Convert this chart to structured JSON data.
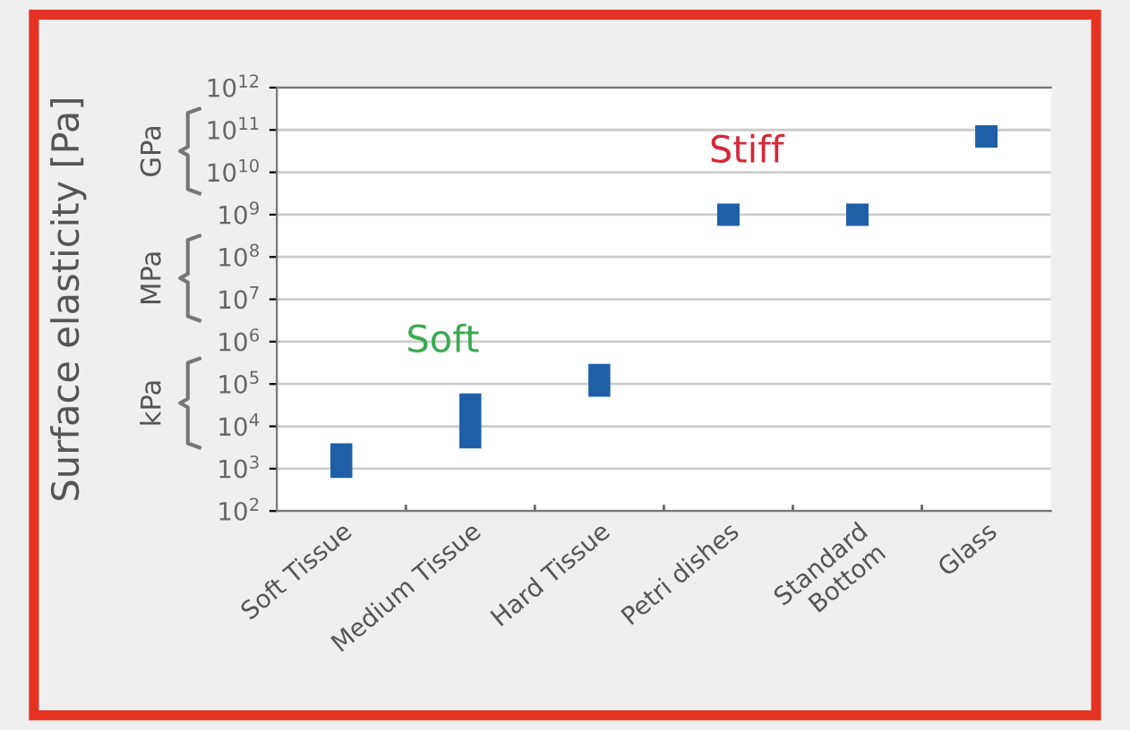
{
  "chart_data": {
    "type": "bar",
    "ylabel": "Surface elasticity [Pa]",
    "categories": [
      "Soft Tissue",
      "Medium Tissue",
      "Hard Tissue",
      "Petri dishes",
      "Standard\nBottom",
      "Glass"
    ],
    "series": [
      {
        "color": "#1f5fa8",
        "values": [
          3400,
          57000,
          250000,
          null,
          null,
          null
        ],
        "base": [
          600,
          3000,
          50000,
          null,
          null,
          null
        ]
      },
      {
        "type": "scatter",
        "color": "#1f5fa8",
        "marker": "square",
        "values": [
          null,
          null,
          null,
          1000000000,
          1000000000,
          70000000000
        ]
      }
    ],
    "log": true,
    "ylim": [
      100,
      1000000000000
    ],
    "yticks": [
      {
        "value": 100,
        "label": "10$^{2}$"
      },
      {
        "value": 1000,
        "label": "10$^{3}$"
      },
      {
        "value": 10000,
        "label": "10$^{4}$"
      },
      {
        "value": 100000,
        "label": "10$^{5}$"
      },
      {
        "value": 1000000,
        "label": "10$^{6}$"
      },
      {
        "value": 10000000,
        "label": "10$^{7}$"
      },
      {
        "value": 100000000,
        "label": "10$^{8}$"
      },
      {
        "value": 1000000000,
        "label": "10$^{9}$"
      },
      {
        "value": 10000000000,
        "label": "10$^{10}$"
      },
      {
        "value": 100000000000,
        "label": "10$^{11}$"
      },
      {
        "value": 1000000000000,
        "label": "10$^{12}$"
      }
    ],
    "grid": "y",
    "annotations": [
      "Soft",
      "Stiff",
      "kPa",
      "MPa",
      "GPa"
    ]
  }
}
